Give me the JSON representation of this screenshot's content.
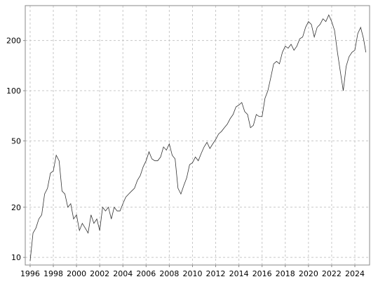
{
  "chart_data": {
    "type": "line",
    "color": "#333333",
    "log_y": true,
    "grid": true,
    "xlim": [
      1995.58,
      2025.27
    ],
    "xticks": [
      1996,
      1998,
      2000,
      2002,
      2004,
      2006,
      2008,
      2010,
      2012,
      2014,
      2016,
      2018,
      2020,
      2022,
      2024
    ],
    "ylim": [
      9,
      324
    ],
    "yticks": [
      10,
      20,
      50,
      100,
      200
    ],
    "x": [
      1996.0,
      1996.25,
      1996.5,
      1996.75,
      1997.0,
      1997.25,
      1997.5,
      1997.75,
      1998.0,
      1998.25,
      1998.5,
      1998.75,
      1999.0,
      1999.25,
      1999.5,
      1999.75,
      2000.0,
      2000.25,
      2000.5,
      2000.75,
      2001.0,
      2001.25,
      2001.5,
      2001.75,
      2002.0,
      2002.25,
      2002.5,
      2002.75,
      2003.0,
      2003.25,
      2003.5,
      2003.75,
      2004.0,
      2004.25,
      2004.5,
      2004.75,
      2005.0,
      2005.25,
      2005.5,
      2005.75,
      2006.0,
      2006.25,
      2006.5,
      2006.75,
      2007.0,
      2007.25,
      2007.5,
      2007.75,
      2008.0,
      2008.25,
      2008.5,
      2008.75,
      2009.0,
      2009.25,
      2009.5,
      2009.75,
      2010.0,
      2010.25,
      2010.5,
      2010.75,
      2011.0,
      2011.25,
      2011.5,
      2011.75,
      2012.0,
      2012.25,
      2012.5,
      2012.75,
      2013.0,
      2013.25,
      2013.5,
      2013.75,
      2014.0,
      2014.25,
      2014.5,
      2014.75,
      2015.0,
      2015.25,
      2015.5,
      2015.75,
      2016.0,
      2016.25,
      2016.5,
      2016.75,
      2017.0,
      2017.25,
      2017.5,
      2017.75,
      2018.0,
      2018.25,
      2018.5,
      2018.75,
      2019.0,
      2019.25,
      2019.5,
      2019.75,
      2020.0,
      2020.25,
      2020.5,
      2020.75,
      2021.0,
      2021.25,
      2021.5,
      2021.75,
      2022.0,
      2022.25,
      2022.5,
      2022.75,
      2023.0,
      2023.25,
      2023.5,
      2023.75,
      2024.0,
      2024.25,
      2024.5,
      2024.75,
      2024.95
    ],
    "values": [
      9.5,
      14,
      15,
      17,
      18,
      24,
      26,
      32,
      33,
      41,
      38,
      25,
      24,
      20,
      21,
      17,
      18,
      14.5,
      16,
      15,
      14,
      18,
      16,
      17,
      14.5,
      20,
      19,
      20,
      17,
      20,
      19,
      19,
      21,
      23,
      24,
      25,
      26,
      29,
      31,
      35,
      38,
      43,
      39,
      38,
      38,
      40,
      46,
      44,
      48,
      41,
      39,
      26,
      24,
      27,
      30,
      36,
      37,
      40,
      38,
      42,
      46,
      49,
      45,
      48,
      51,
      55,
      57,
      60,
      63,
      68,
      72,
      80,
      82,
      85,
      75,
      72,
      60,
      62,
      72,
      70,
      70,
      90,
      100,
      120,
      145,
      150,
      145,
      170,
      185,
      180,
      190,
      175,
      185,
      205,
      210,
      240,
      260,
      250,
      210,
      240,
      250,
      270,
      260,
      285,
      260,
      230,
      170,
      130,
      100,
      140,
      160,
      170,
      175,
      220,
      240,
      205,
      170
    ]
  }
}
